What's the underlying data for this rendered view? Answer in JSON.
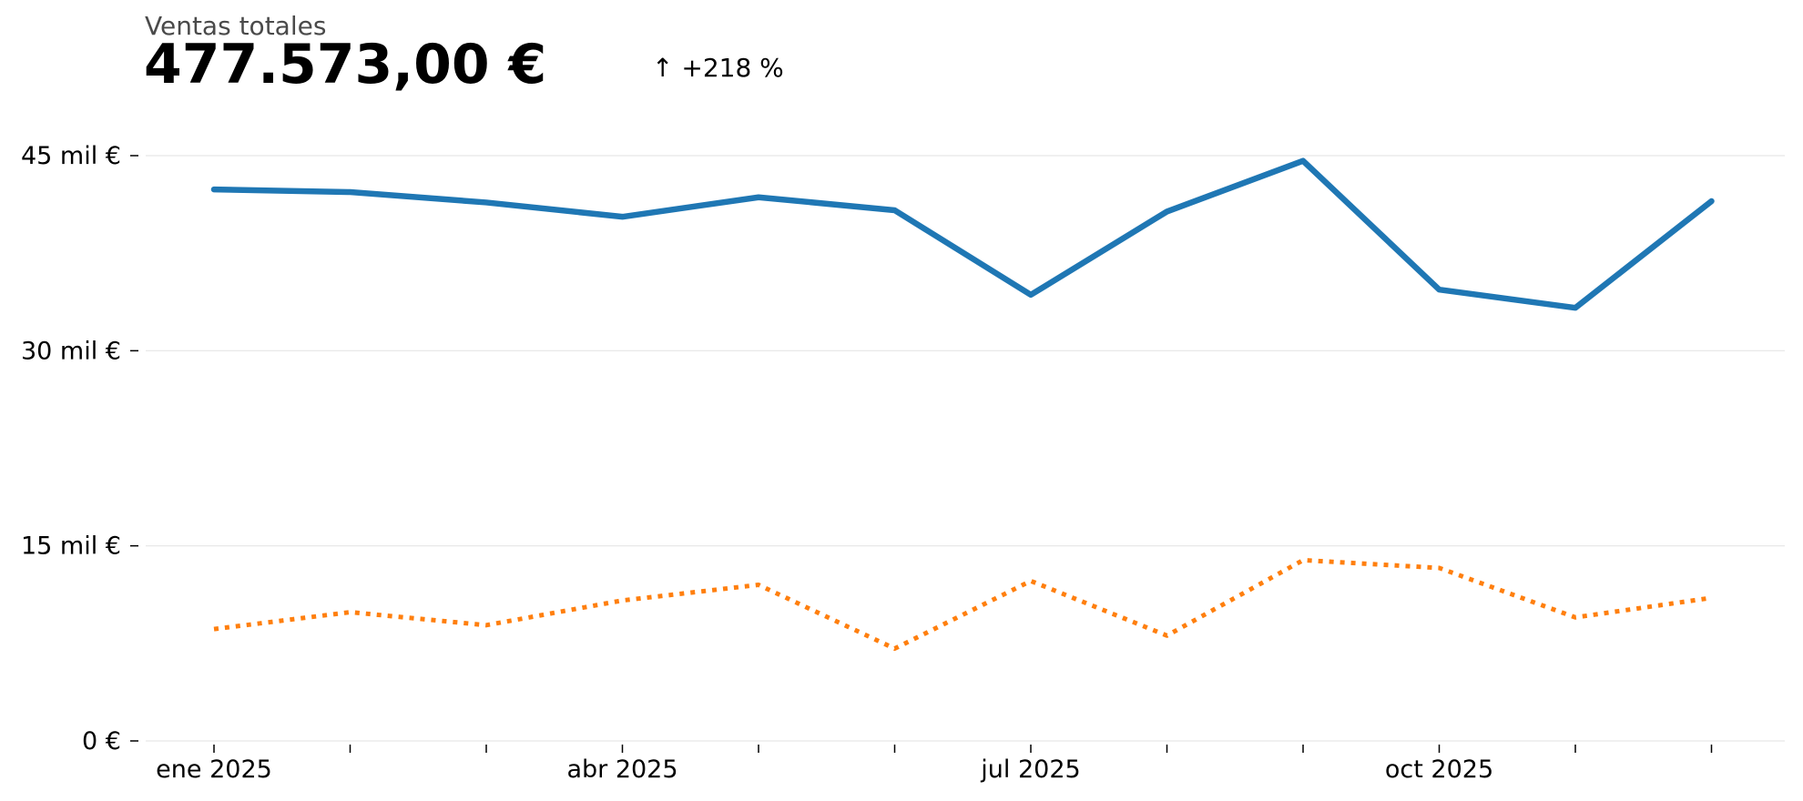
{
  "header": {
    "label": "Ventas totales",
    "value": "477.573,00 €",
    "change": "↑ +218 %"
  },
  "chart_data": {
    "type": "line",
    "title": "",
    "xlabel": "",
    "ylabel": "",
    "x": [
      "2025-01",
      "2025-02",
      "2025-03",
      "2025-04",
      "2025-05",
      "2025-06",
      "2025-07",
      "2025-08",
      "2025-09",
      "2025-10",
      "2025-11",
      "2025-12"
    ],
    "x_tick_labels": [
      "ene 2025",
      "",
      "",
      "abr 2025",
      "",
      "",
      "jul 2025",
      "",
      "",
      "oct 2025",
      "",
      ""
    ],
    "y_tick_values": [
      0,
      15000,
      30000,
      45000
    ],
    "y_tick_labels": [
      "0 €",
      "15 mil €",
      "30 mil €",
      "45 mil €"
    ],
    "ylim": [
      0,
      45000
    ],
    "grid": "horizontal",
    "series": [
      {
        "color": "#1f77b4",
        "style": "solid",
        "values": [
          42400,
          42200,
          41400,
          40300,
          41800,
          40800,
          34300,
          40700,
          44600,
          34700,
          33300,
          41500
        ]
      },
      {
        "color": "#ff7f0e",
        "style": "dotted",
        "values": [
          8600,
          9900,
          8900,
          10800,
          12000,
          7100,
          12300,
          8100,
          13900,
          13300,
          9500,
          11000
        ]
      }
    ]
  }
}
